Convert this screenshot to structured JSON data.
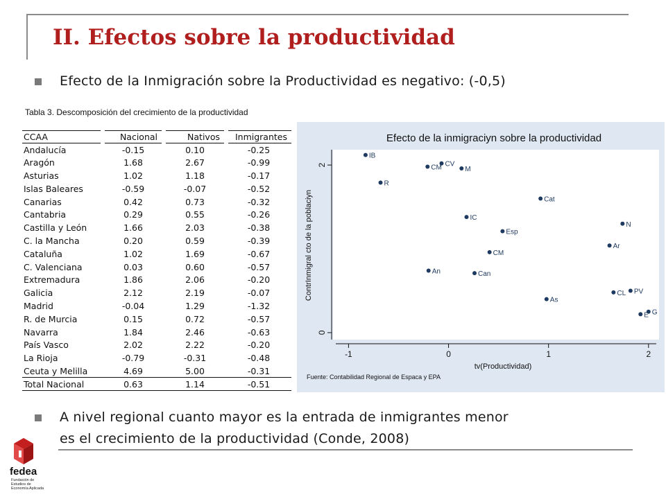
{
  "slide": {
    "title": "II. Efectos sobre la productividad",
    "bullet1": "Efecto de la Inmigración sobre la Productividad es negativo: (-0,5)",
    "bullet2_line1": "A nivel regional cuanto mayor es la entrada de inmigrantes menor",
    "bullet2_line2": "es el crecimiento de  la productividad (Conde, 2008)"
  },
  "table": {
    "caption": "Tabla 3. Descomposición del crecimiento de la productividad",
    "headers": [
      "CCAA",
      "Nacional",
      "Nativos",
      "Inmigrantes"
    ],
    "rows": [
      [
        "Andalucía",
        "-0.15",
        "0.10",
        "-0.25"
      ],
      [
        "Aragón",
        "1.68",
        "2.67",
        "-0.99"
      ],
      [
        "Asturias",
        "1.02",
        "1.18",
        "-0.17"
      ],
      [
        "Islas Baleares",
        "-0.59",
        "-0.07",
        "-0.52"
      ],
      [
        "Canarias",
        "0.42",
        "0.73",
        "-0.32"
      ],
      [
        "Cantabria",
        "0.29",
        "0.55",
        "-0.26"
      ],
      [
        "Castilla y León",
        "1.66",
        "2.03",
        "-0.38"
      ],
      [
        "C. la Mancha",
        "0.20",
        "0.59",
        "-0.39"
      ],
      [
        "Cataluña",
        "1.02",
        "1.69",
        "-0.67"
      ],
      [
        "C. Valenciana",
        "0.03",
        "0.60",
        "-0.57"
      ],
      [
        "Extremadura",
        "1.86",
        "2.06",
        "-0.20"
      ],
      [
        "Galicia",
        "2.12",
        "2.19",
        "-0.07"
      ],
      [
        "Madrid",
        "-0.04",
        "1.29",
        "-1.32"
      ],
      [
        "R. de Murcia",
        "0.15",
        "0.72",
        "-0.57"
      ],
      [
        "Navarra",
        "1.84",
        "2.46",
        "-0.63"
      ],
      [
        "País Vasco",
        "2.02",
        "2.22",
        "-0.20"
      ],
      [
        "La Rioja",
        "-0.79",
        "-0.31",
        "-0.48"
      ],
      [
        "Ceuta y Melilla",
        "4.69",
        "5.00",
        "-0.31"
      ],
      [
        "Total Nacional",
        "0.63",
        "1.14",
        "-0.51"
      ]
    ]
  },
  "chart_data": {
    "type": "scatter",
    "title": "Efecto de la inmigraciyn sobre la productividad",
    "xlabel": "tv(Productividad)",
    "ylabel": "ContrInmigral cto de la poblaciyn",
    "source": "Fuente: Contabilidad Regional de Espaca y EPA",
    "xlim": [
      -1.1,
      2.05
    ],
    "ylim": [
      -0.05,
      2.15
    ],
    "xticks": [
      -1,
      0,
      1,
      2
    ],
    "yticks": [
      0,
      2
    ],
    "points": [
      {
        "label": "IB",
        "x": -0.83,
        "y": 2.12
      },
      {
        "label": "CV",
        "x": -0.07,
        "y": 2.02
      },
      {
        "label": "CM",
        "x": -0.21,
        "y": 1.98
      },
      {
        "label": "M",
        "x": 0.13,
        "y": 1.96
      },
      {
        "label": "R",
        "x": -0.68,
        "y": 1.79
      },
      {
        "label": "Cat",
        "x": 0.92,
        "y": 1.6
      },
      {
        "label": "IC",
        "x": 0.18,
        "y": 1.38
      },
      {
        "label": "N",
        "x": 1.74,
        "y": 1.3
      },
      {
        "label": "Esp",
        "x": 0.54,
        "y": 1.21
      },
      {
        "label": "Ar",
        "x": 1.61,
        "y": 1.04
      },
      {
        "label": "CM",
        "x": 0.41,
        "y": 0.96
      },
      {
        "label": "An",
        "x": -0.2,
        "y": 0.74
      },
      {
        "label": "Can",
        "x": 0.26,
        "y": 0.71
      },
      {
        "label": "PV",
        "x": 1.82,
        "y": 0.5
      },
      {
        "label": "CL",
        "x": 1.65,
        "y": 0.48
      },
      {
        "label": "As",
        "x": 0.98,
        "y": 0.4
      },
      {
        "label": "G",
        "x": 2.0,
        "y": 0.25
      },
      {
        "label": "E",
        "x": 1.92,
        "y": 0.22
      }
    ]
  },
  "logo": {
    "word": "fedea",
    "subtitle": "Fundación de Estudios de Economía Aplicada"
  },
  "colors": {
    "title": "#b01e1e",
    "chart_background": "#dfe8f2",
    "marker": "#1f3a60"
  }
}
